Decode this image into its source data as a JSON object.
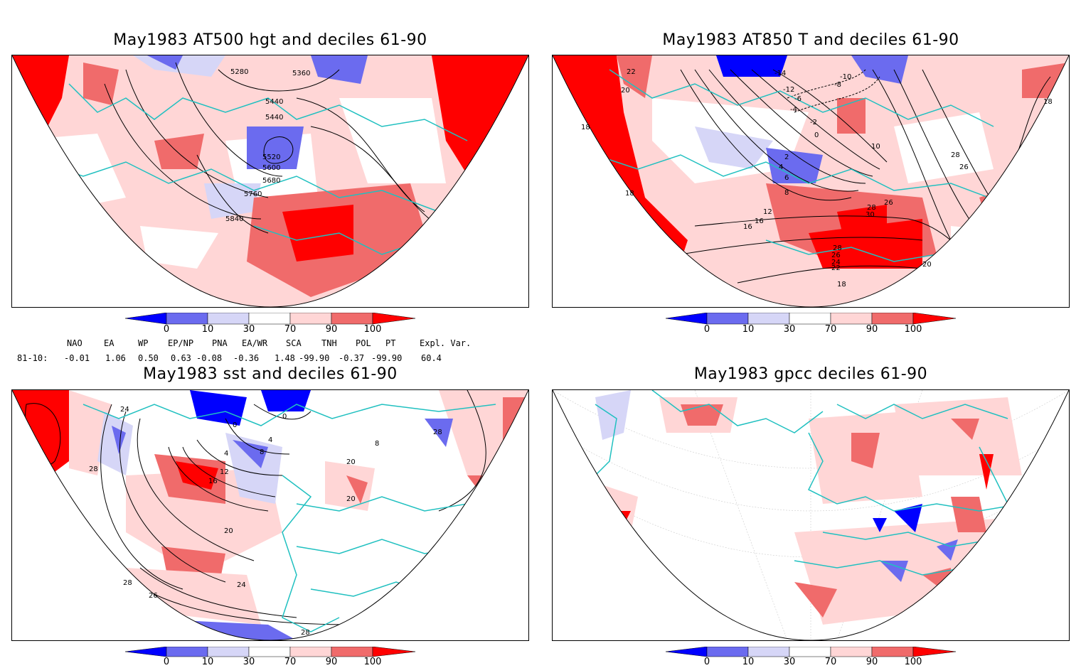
{
  "panels": [
    {
      "title": "May1983 AT500 hgt and deciles 61-90",
      "contour_labels": [
        "5280",
        "5360",
        "5440",
        "5440",
        "5520",
        "5600",
        "5680",
        "5760",
        "5840"
      ]
    },
    {
      "title": "May1983 AT850 T and deciles 61-90",
      "contour_labels": [
        "22",
        "20",
        "18",
        "18",
        "-14",
        "-12",
        "-10",
        "-8",
        "-6",
        "-4",
        "-2",
        "0",
        "2",
        "4",
        "6",
        "8",
        "10",
        "12",
        "16",
        "16",
        "18",
        "20",
        "22",
        "24",
        "26",
        "26",
        "28",
        "28",
        "30",
        "26",
        "28",
        "18"
      ]
    },
    {
      "title": "May1983 sst and deciles 61-90",
      "contour_labels": [
        "24",
        "28",
        "0",
        "0",
        "4",
        "8",
        "4",
        "12",
        "16",
        "20",
        "20",
        "24",
        "28",
        "28",
        "26",
        "28",
        "8",
        "20"
      ]
    },
    {
      "title": "May1983 gpcc deciles 61-90",
      "contour_labels": []
    }
  ],
  "colorbar": {
    "ticks": [
      "0",
      "10",
      "30",
      "70",
      "90",
      "100"
    ],
    "colors": [
      "#0000ff",
      "#6b6bef",
      "#d6d6f7",
      "#ffffff",
      "#ffd6d6",
      "#f06b6b",
      "#ff0000"
    ]
  },
  "teleconnections": {
    "headers": [
      "NAO",
      "EA",
      "WP",
      "EP/NP",
      "PNA",
      "EA/WR",
      "SCA",
      "TNH",
      "POL",
      "PT",
      "Expl. Var."
    ],
    "row_label": "81-10:",
    "values": [
      "-0.01",
      "1.06",
      "0.50",
      "0.63",
      "-0.08",
      "-0.36",
      "1.48",
      "-99.90",
      "-0.37",
      "-99.90",
      "60.4"
    ]
  }
}
